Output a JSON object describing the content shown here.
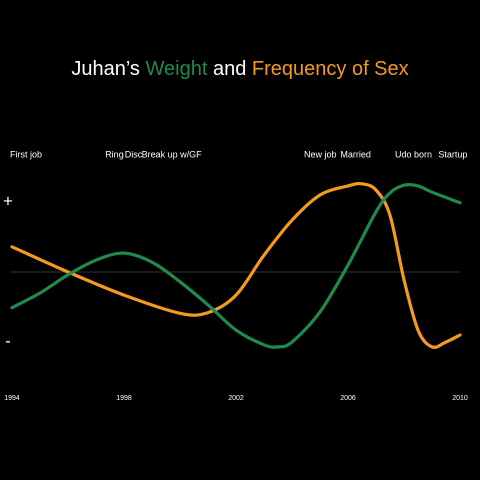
{
  "chart_data": {
    "type": "line",
    "title_prefix": "Juhan’s",
    "title_joiner": "and",
    "xlim": [
      1994,
      2010
    ],
    "xticks": [
      1994,
      1998,
      2002,
      2006,
      2010
    ],
    "ylim": [
      -1.4,
      1.4
    ],
    "yticks": [
      {
        "value": 1,
        "label": "+"
      },
      {
        "value": -1,
        "label": "-"
      }
    ],
    "annotations": [
      {
        "x": 1994,
        "text": "First job"
      },
      {
        "x": 1997.4,
        "text": "Ring"
      },
      {
        "x": 1998.1,
        "text": "Disc"
      },
      {
        "x": 1998.7,
        "text": "Break up w/GF"
      },
      {
        "x": 2004.5,
        "text": "New job"
      },
      {
        "x": 2005.8,
        "text": "Married"
      },
      {
        "x": 2007.75,
        "text": "Udo born"
      },
      {
        "x": 2009.3,
        "text": "Startup"
      }
    ],
    "series": [
      {
        "name": "Weight",
        "color": "#1e8a4c",
        "x": [
          1994,
          1995,
          1996,
          1997,
          1998,
          1999,
          2000,
          2001,
          2002,
          2003,
          2003.5,
          2004,
          2005,
          2006,
          2007,
          2007.5,
          2008,
          2008.5,
          2009,
          2010
        ],
        "values": [
          -0.51,
          -0.3,
          -0.04,
          0.17,
          0.27,
          0.14,
          -0.14,
          -0.47,
          -0.83,
          -1.04,
          -1.07,
          -1.0,
          -0.57,
          0.1,
          0.86,
          1.13,
          1.24,
          1.23,
          1.14,
          0.99
        ]
      },
      {
        "name": "Frequency of Sex",
        "color": "#f49a1e",
        "x": [
          1994,
          1996,
          1998,
          2000,
          2001,
          2002,
          2003,
          2004,
          2005,
          2006,
          2006.5,
          2007,
          2007.5,
          2008,
          2008.5,
          2009,
          2009.5,
          2010
        ],
        "values": [
          0.36,
          0,
          -0.33,
          -0.59,
          -0.58,
          -0.33,
          0.24,
          0.74,
          1.1,
          1.23,
          1.26,
          1.17,
          0.81,
          -0.11,
          -0.83,
          -1.07,
          -1.0,
          -0.9
        ]
      }
    ]
  }
}
